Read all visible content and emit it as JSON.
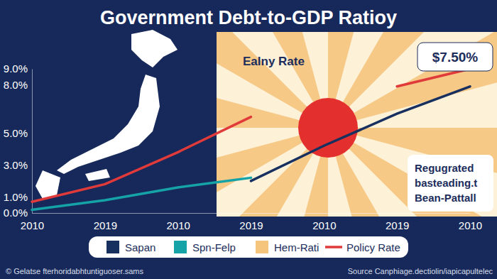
{
  "chart_data": {
    "type": "line",
    "title": "Government Debt-to-GDP Ratioy",
    "categories": [
      "2010",
      "2019",
      "2010",
      "2019",
      "2010",
      "2019",
      "2010"
    ],
    "series": [
      {
        "name": "Sapan",
        "color": "#17305f",
        "values": [
          null,
          null,
          null,
          2.0,
          4.2,
          6.2,
          7.9
        ]
      },
      {
        "name": "Spn-Felp",
        "color": "#15a3a8",
        "values": [
          0.2,
          0.8,
          1.6,
          2.2,
          null,
          null,
          null
        ]
      },
      {
        "name": "Hem-Rati",
        "color": "#f5c57e",
        "values": [
          null,
          null,
          null,
          null,
          null,
          null,
          null
        ]
      },
      {
        "name": "Policy Rate",
        "color": "#e03a3a",
        "values": [
          0.7,
          1.8,
          3.8,
          6.0,
          null,
          7.9,
          9.0
        ]
      }
    ],
    "ylim": [
      0,
      9
    ],
    "yticks": [
      {
        "value": 0,
        "label": "0.0%"
      },
      {
        "value": 1,
        "label": "1.0%"
      },
      {
        "value": 3,
        "label": "3.0%"
      },
      {
        "value": 5,
        "label": "5.0%"
      },
      {
        "value": 8,
        "label": "8.0%"
      },
      {
        "value": 9,
        "label": "9.0%"
      }
    ],
    "grid": false,
    "legend": "bottom",
    "annotations": [
      "Ealny Rate",
      "$7.50%",
      "Regugrated basteading.t Bean-Pattall"
    ],
    "credit": "© Gelatse fterhoridabhtuntiguoser.sams",
    "source": "Source Canphiage.dectiolin/iapicapultelec"
  }
}
